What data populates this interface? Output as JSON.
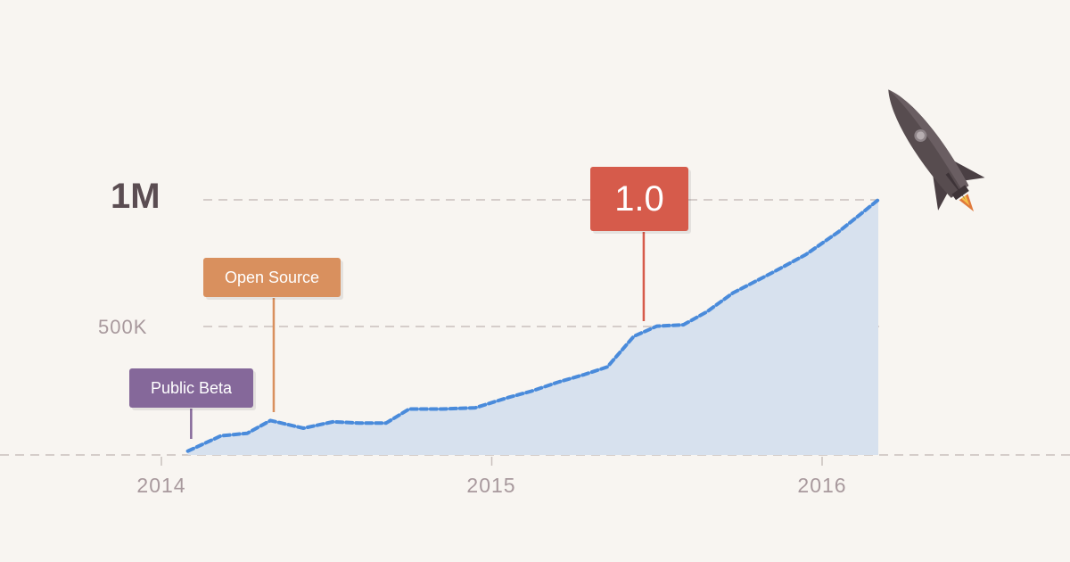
{
  "chart_data": {
    "type": "area",
    "title": "",
    "xlabel": "",
    "ylabel": "",
    "x_ticks": [
      "2014",
      "2015",
      "2016"
    ],
    "y_ticks": [
      "500K",
      "1M"
    ],
    "y_tick_values": [
      500000,
      1000000
    ],
    "ylim": [
      0,
      1000000
    ],
    "xlim": [
      2014.0,
      2016.7
    ],
    "grid": "dashed horizontal",
    "series": [
      {
        "x": [
          2014.08,
          2014.18,
          2014.26,
          2014.33,
          2014.43,
          2014.52,
          2014.6,
          2014.68,
          2014.75,
          2014.85,
          2014.95,
          2015.05,
          2015.12,
          2015.2,
          2015.28,
          2015.35,
          2015.43,
          2015.5,
          2015.58,
          2015.65,
          2015.73,
          2015.85,
          2015.95,
          2016.05,
          2016.17
        ],
        "values": [
          15000,
          75000,
          85000,
          135000,
          105000,
          130000,
          125000,
          125000,
          180000,
          180000,
          185000,
          225000,
          250000,
          285000,
          315000,
          345000,
          465000,
          505000,
          510000,
          560000,
          635000,
          715000,
          785000,
          875000,
          1000000
        ]
      }
    ],
    "annotations": [
      {
        "label": "Public Beta",
        "x": 2014.09,
        "color": "#85689a"
      },
      {
        "label": "Open Source",
        "x": 2014.34,
        "color": "#d9905e"
      },
      {
        "label": "1.0",
        "x": 2015.46,
        "color": "#d65b4b"
      }
    ]
  },
  "colors": {
    "background": "#f8f5f1",
    "line": "#4a8bdb",
    "area_fill": "#d7e1ee",
    "grid": "#c9c0bd",
    "tick_text": "#a8999d",
    "major_tick_text": "#5b4d52",
    "rocket_body": "#574c4f"
  },
  "decoration": {
    "icon": "rocket-icon"
  }
}
